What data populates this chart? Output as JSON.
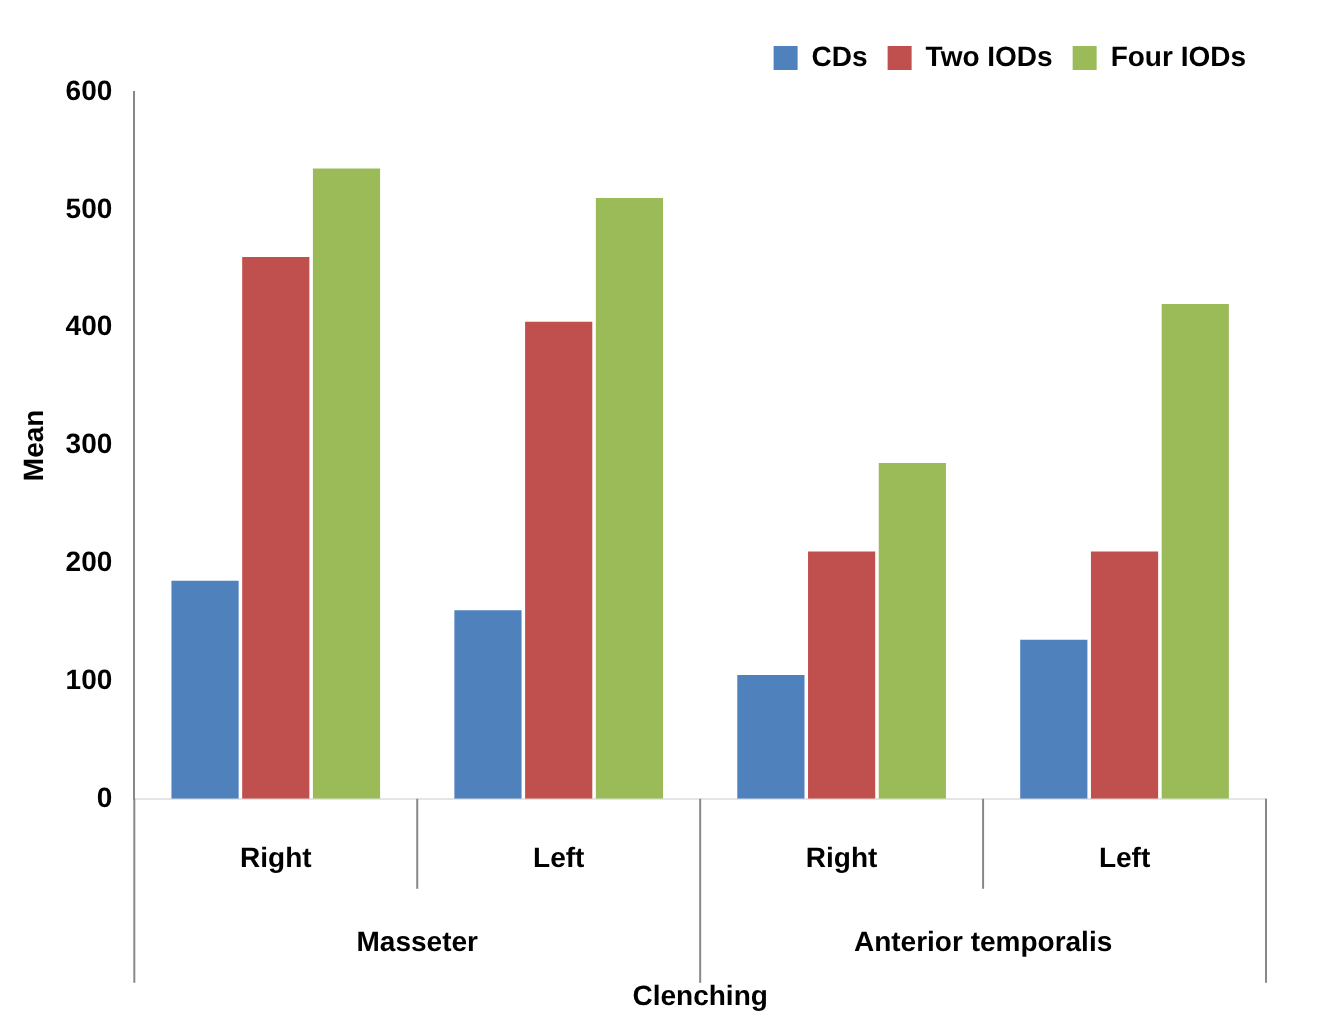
{
  "chart_data": {
    "type": "bar",
    "xlabel": "Clenching",
    "ylabel": "Mean",
    "categories": [
      "Right",
      "Left",
      "Right",
      "Left"
    ],
    "series": [
      {
        "name": "CDs",
        "color": "#4f81bd",
        "values": [
          185,
          160,
          105,
          135
        ]
      },
      {
        "name": "Two IODs",
        "color": "#c0504d",
        "values": [
          460,
          405,
          210,
          210
        ]
      },
      {
        "name": "Four IODs",
        "color": "#9bbb59",
        "values": [
          535,
          510,
          285,
          420
        ]
      }
    ],
    "annotations": [
      "Masseter",
      "Anterior temporalis"
    ],
    "ylim": [
      0,
      600
    ],
    "yticks": [
      0,
      100,
      200,
      300,
      400,
      500,
      600
    ],
    "grid": false,
    "legend": "top right"
  }
}
